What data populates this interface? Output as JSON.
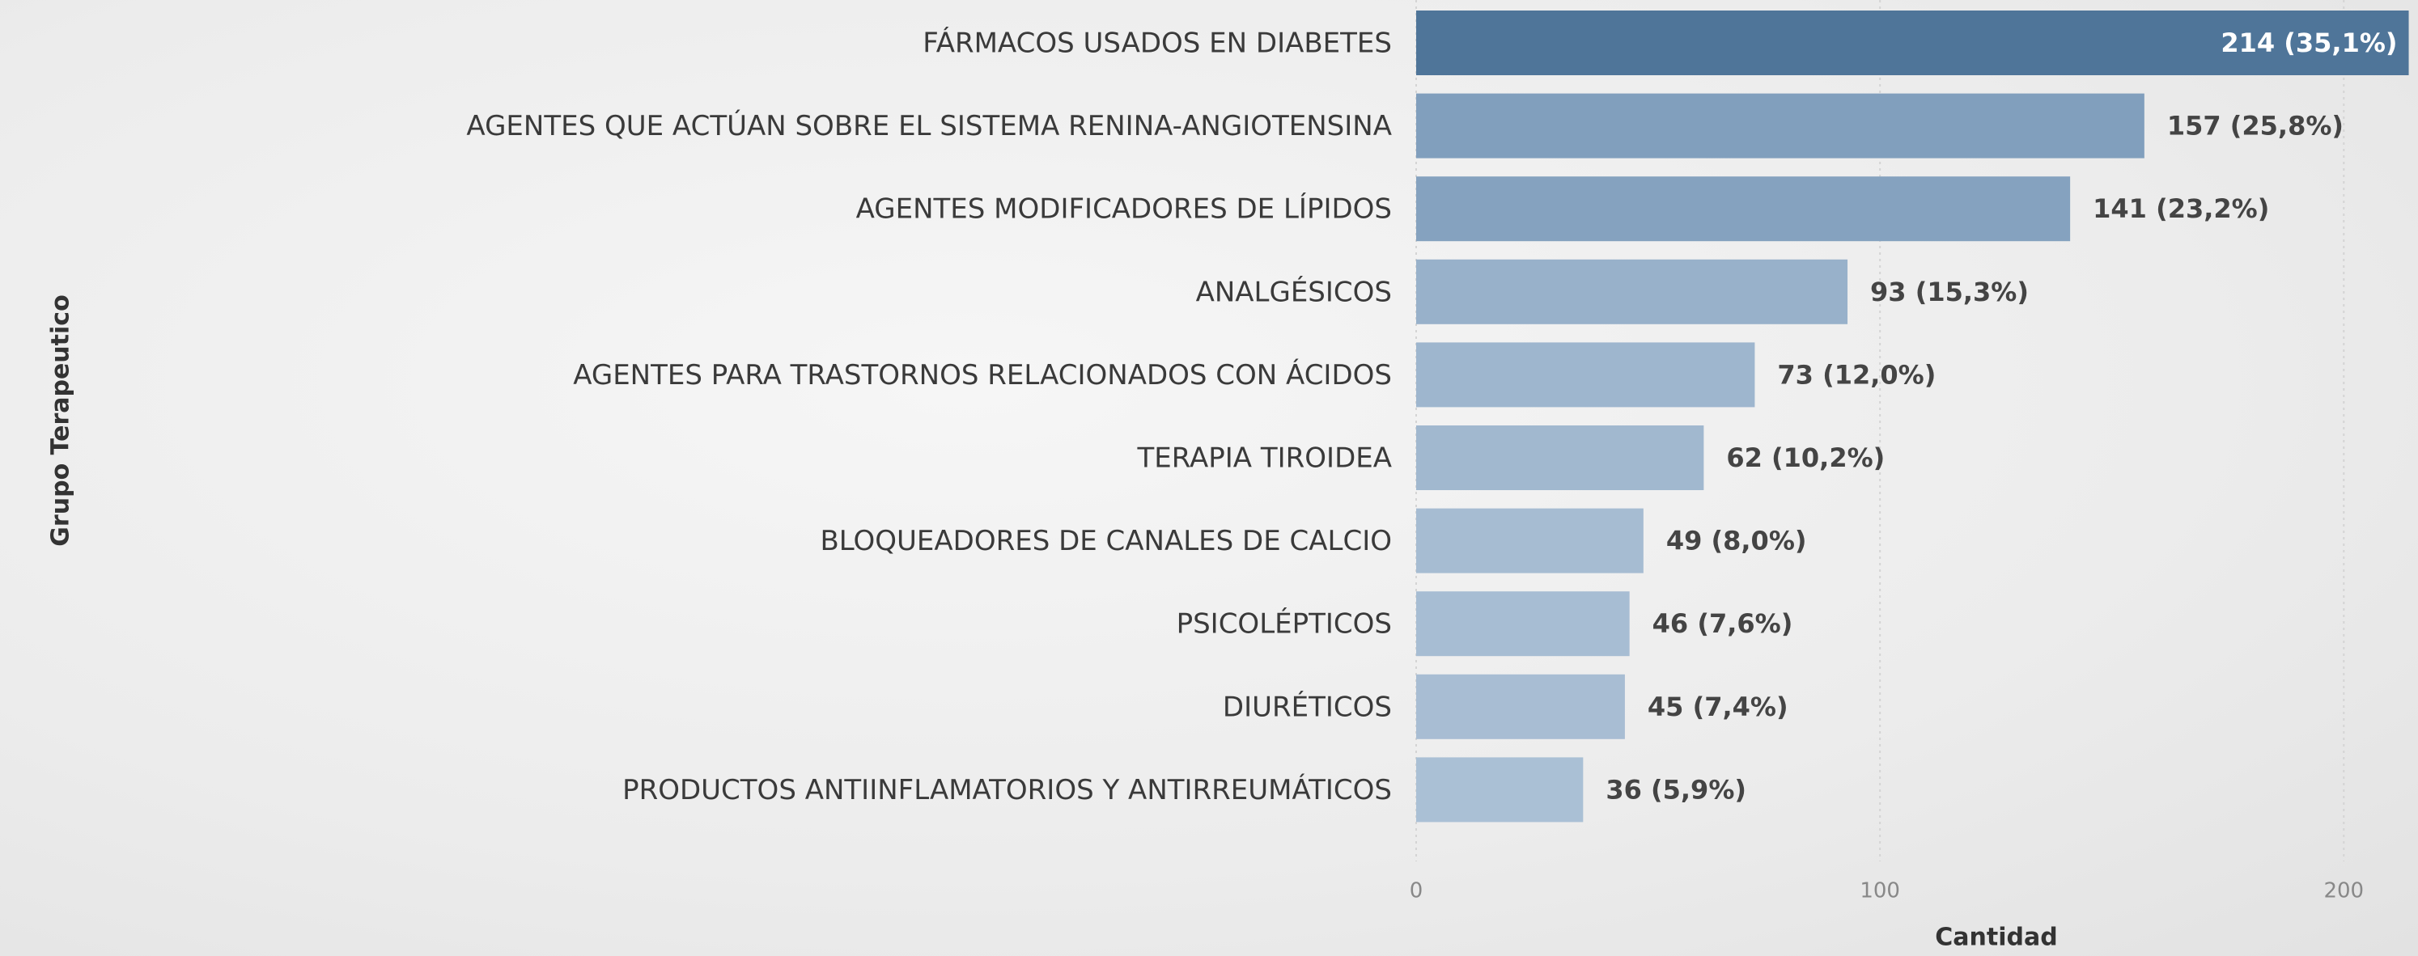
{
  "chart_data": {
    "type": "barh",
    "y_label": "Grupo Terapeutico",
    "x_label": "Cantidad",
    "categories": [
      "FÁRMACOS USADOS EN DIABETES",
      "AGENTES QUE ACTÚAN SOBRE EL SISTEMA RENINA-ANGIOTENSINA",
      "AGENTES MODIFICADORES DE LÍPIDOS",
      "ANALGÉSICOS",
      "AGENTES PARA TRASTORNOS RELACIONADOS CON ÁCIDOS",
      "TERAPIA TIROIDEA",
      "BLOQUEADORES DE CANALES DE CALCIO",
      "PSICOLÉPTICOS",
      "DIURÉTICOS",
      "PRODUCTOS ANTIINFLAMATORIOS Y ANTIRREUMÁTICOS"
    ],
    "values": [
      214,
      157,
      141,
      93,
      73,
      62,
      49,
      46,
      45,
      36
    ],
    "value_labels": [
      "214 (35,1%)",
      "157 (25,8%)",
      "141 (23,2%)",
      "93 (15,3%)",
      "73 (12,0%)",
      "62 (10,2%)",
      "49 (8,0%)",
      "46 (7,6%)",
      "45 (7,4%)",
      "36 (5,9%)"
    ],
    "colors": [
      "#4f7599",
      "#819fbd",
      "#85a2bf",
      "#98b1ca",
      "#9eb6ce",
      "#a1b8cf",
      "#a6bcd2",
      "#a7bdd3",
      "#a8bdd3",
      "#aac0d5"
    ],
    "xlim": [
      0,
      216
    ],
    "xticks": [
      0,
      100,
      200
    ],
    "grid": true
  }
}
